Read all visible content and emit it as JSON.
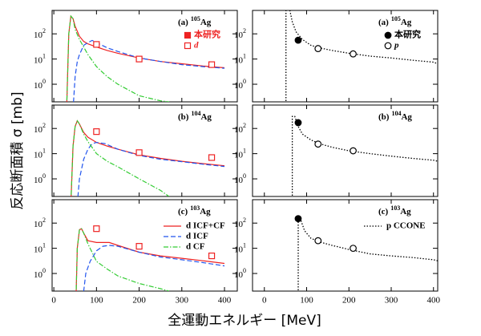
{
  "ylabel": "反応断面積 σ [mb]",
  "xlabel": "全運動エネルギー [MeV]",
  "chart_data": [
    {
      "type": "line",
      "panel": "(a)",
      "mass": "105",
      "element": "Ag",
      "log_y": true,
      "xlim": [
        -4,
        430
      ],
      "ylim": [
        0.2,
        850
      ],
      "xticks": [
        0,
        100,
        200,
        300,
        400
      ],
      "yticks": [
        {
          "value": 1,
          "label": "10",
          "exp": "0"
        },
        {
          "value": 10,
          "label": "10",
          "exp": "1"
        },
        {
          "value": 100,
          "label": "10",
          "exp": "2"
        }
      ],
      "xtick_labels": false,
      "legend_markers": [
        {
          "marker": "filled-square",
          "color": "#ee2222",
          "label": "本研究"
        },
        {
          "marker": "open-square",
          "color": "#ee2222",
          "label": "d"
        }
      ],
      "series": [
        {
          "style": "solid",
          "color": "#ee2222",
          "x": [
            30,
            35,
            40,
            45,
            50,
            60,
            70,
            80,
            100,
            125,
            150,
            200,
            250,
            300,
            350,
            400
          ],
          "values": [
            0.1,
            100,
            500,
            400,
            200,
            80,
            50,
            40,
            30,
            22,
            17,
            11,
            8,
            6.5,
            5.3,
            4.5
          ]
        },
        {
          "style": "dashed",
          "color": "#2255ee",
          "x": [
            45,
            50,
            55,
            60,
            70,
            80,
            90,
            100,
            125,
            150,
            200,
            250,
            300,
            350,
            400
          ],
          "values": [
            0.1,
            2,
            8,
            15,
            35,
            45,
            55,
            45,
            28,
            20,
            11,
            8,
            6,
            5,
            4.3
          ]
        },
        {
          "style": "dashdot",
          "color": "#33cc33",
          "x": [
            30,
            35,
            40,
            45,
            50,
            60,
            80,
            100,
            125,
            150,
            200,
            250,
            270
          ],
          "values": [
            0.1,
            100,
            500,
            400,
            150,
            60,
            15,
            5,
            2,
            1,
            0.35,
            0.22,
            0.2
          ]
        },
        {
          "style": "marker",
          "marker": "open-square",
          "color": "#ee2222",
          "x": [
            100,
            200,
            370
          ],
          "values": [
            38,
            10,
            6
          ]
        }
      ]
    },
    {
      "type": "line",
      "panel": "(a)",
      "mass": "105",
      "element": "Ag",
      "log_y": true,
      "xlim": [
        -28,
        410
      ],
      "ylim": [
        0.2,
        850
      ],
      "xticks": [
        0,
        100,
        200,
        300,
        400
      ],
      "yticks": [
        {
          "value": 1,
          "label": "10",
          "exp": "0"
        },
        {
          "value": 10,
          "label": "10",
          "exp": "1"
        },
        {
          "value": 100,
          "label": "10",
          "exp": "2"
        }
      ],
      "xtick_labels": false,
      "legend_markers": [
        {
          "marker": "filled-circle",
          "color": "#000000",
          "label": "本研究"
        },
        {
          "marker": "open-circle",
          "color": "#000000",
          "label": "p"
        }
      ],
      "series": [
        {
          "style": "dotted",
          "color": "#000000",
          "x": [
            51,
            51,
            60,
            66,
            75,
            90,
            110,
            130,
            160,
            200,
            250,
            300,
            350,
            400,
            410
          ],
          "values": [
            0.1,
            900,
            900,
            300,
            120,
            60,
            35,
            28,
            22,
            17,
            13,
            11,
            9,
            7.5,
            6.5
          ]
        },
        {
          "style": "marker",
          "marker": "filled-circle",
          "color": "#000000",
          "x": [
            80
          ],
          "values": [
            56
          ]
        },
        {
          "style": "marker",
          "marker": "open-circle",
          "color": "#000000",
          "x": [
            127,
            210
          ],
          "values": [
            26,
            16
          ]
        }
      ]
    },
    {
      "type": "line",
      "panel": "(b)",
      "mass": "104",
      "element": "Ag",
      "log_y": true,
      "xlim": [
        -4,
        430
      ],
      "ylim": [
        0.2,
        850
      ],
      "xticks": [
        0,
        100,
        200,
        300,
        400
      ],
      "yticks": [
        {
          "value": 1,
          "label": "10",
          "exp": "0"
        },
        {
          "value": 10,
          "label": "10",
          "exp": "1"
        },
        {
          "value": 100,
          "label": "10",
          "exp": "2"
        }
      ],
      "xtick_labels": false,
      "series": [
        {
          "style": "solid",
          "color": "#ee2222",
          "x": [
            40,
            45,
            50,
            55,
            60,
            70,
            80,
            100,
            125,
            150,
            200,
            250,
            300,
            350,
            400
          ],
          "values": [
            0.1,
            20,
            120,
            200,
            150,
            70,
            45,
            28,
            20,
            15,
            9,
            6.5,
            5,
            4,
            3.3
          ]
        },
        {
          "style": "dashed",
          "color": "#2255ee",
          "x": [
            55,
            60,
            70,
            80,
            90,
            100,
            120,
            150,
            200,
            250,
            300,
            350,
            400
          ],
          "values": [
            0.1,
            1,
            6,
            15,
            25,
            28,
            25,
            15,
            8.5,
            6,
            4.8,
            3.8,
            3.1
          ]
        },
        {
          "style": "dashdot",
          "color": "#33cc33",
          "x": [
            40,
            45,
            50,
            55,
            60,
            70,
            80,
            100,
            125,
            150,
            200,
            250,
            270
          ],
          "values": [
            0.1,
            20,
            120,
            200,
            150,
            60,
            30,
            10,
            5,
            3,
            1,
            0.35,
            0.2
          ]
        },
        {
          "style": "marker",
          "marker": "open-square",
          "color": "#ee2222",
          "x": [
            100,
            200,
            370
          ],
          "values": [
            75,
            11,
            7
          ]
        }
      ]
    },
    {
      "type": "line",
      "panel": "(b)",
      "mass": "104",
      "element": "Ag",
      "log_y": true,
      "xlim": [
        -28,
        410
      ],
      "ylim": [
        0.2,
        850
      ],
      "xticks": [
        0,
        100,
        200,
        300,
        400
      ],
      "yticks": [
        {
          "value": 1,
          "label": "10",
          "exp": "0"
        },
        {
          "value": 10,
          "label": "10",
          "exp": "1"
        },
        {
          "value": 100,
          "label": "10",
          "exp": "2"
        }
      ],
      "xtick_labels": false,
      "series": [
        {
          "style": "dotted",
          "color": "#000000",
          "x": [
            66,
            66,
            72,
            80,
            90,
            110,
            130,
            160,
            200,
            250,
            300,
            350,
            400,
            410
          ],
          "values": [
            0.1,
            300,
            300,
            120,
            60,
            35,
            25,
            18,
            13,
            10,
            8,
            6.5,
            5.5,
            5
          ]
        },
        {
          "style": "marker",
          "marker": "filled-circle",
          "color": "#000000",
          "x": [
            80
          ],
          "values": [
            170
          ]
        },
        {
          "style": "marker",
          "marker": "open-circle",
          "color": "#000000",
          "x": [
            127,
            210
          ],
          "values": [
            24,
            13
          ]
        }
      ]
    },
    {
      "type": "line",
      "panel": "(c)",
      "mass": "103",
      "element": "Ag",
      "log_y": true,
      "xlim": [
        -4,
        430
      ],
      "ylim": [
        0.2,
        850
      ],
      "xticks": [
        0,
        100,
        200,
        300,
        400
      ],
      "yticks": [
        {
          "value": 1,
          "label": "10",
          "exp": "0"
        },
        {
          "value": 10,
          "label": "10",
          "exp": "1"
        },
        {
          "value": 100,
          "label": "10",
          "exp": "2"
        }
      ],
      "xtick_labels": true,
      "legend": true,
      "series": [
        {
          "name": "d ICF+CF",
          "style": "solid",
          "color": "#ee2222",
          "x": [
            52,
            55,
            60,
            65,
            70,
            80,
            100,
            130,
            150,
            200,
            250,
            300,
            350,
            400
          ],
          "values": [
            0.1,
            10,
            55,
            60,
            40,
            20,
            17,
            17,
            13,
            7,
            5,
            4,
            3.2,
            2.5
          ]
        },
        {
          "name": "d ICF",
          "style": "dashed",
          "color": "#2255ee",
          "x": [
            68,
            75,
            85,
            100,
            115,
            130,
            150,
            200,
            250,
            300,
            350,
            400
          ],
          "values": [
            0.1,
            1,
            3,
            8,
            12,
            13,
            12,
            7,
            4.5,
            3.5,
            2.7,
            2
          ]
        },
        {
          "name": "d CF",
          "style": "dashdot",
          "color": "#33cc33",
          "x": [
            52,
            55,
            60,
            65,
            70,
            80,
            100,
            125,
            150,
            200,
            250,
            270
          ],
          "values": [
            0.1,
            10,
            55,
            60,
            40,
            15,
            3,
            1.5,
            0.8,
            0.4,
            0.25,
            0.2
          ]
        },
        {
          "style": "marker",
          "marker": "open-square",
          "color": "#ee2222",
          "x": [
            100,
            200,
            370
          ],
          "values": [
            60,
            12,
            5
          ]
        }
      ]
    },
    {
      "type": "line",
      "panel": "(c)",
      "mass": "103",
      "element": "Ag",
      "log_y": true,
      "xlim": [
        -28,
        410
      ],
      "ylim": [
        0.2,
        850
      ],
      "xticks": [
        0,
        100,
        200,
        300,
        400
      ],
      "yticks": [
        {
          "value": 1,
          "label": "10",
          "exp": "0"
        },
        {
          "value": 10,
          "label": "10",
          "exp": "1"
        },
        {
          "value": 100,
          "label": "10",
          "exp": "2"
        }
      ],
      "xtick_labels": true,
      "legend": true,
      "series": [
        {
          "name": "p CCONE",
          "style": "dotted",
          "color": "#000000",
          "x": [
            80,
            80,
            85,
            95,
            110,
            130,
            160,
            200,
            250,
            300,
            350,
            400,
            410
          ],
          "values": [
            0.1,
            150,
            150,
            50,
            25,
            18,
            13,
            9,
            6,
            5,
            4.3,
            3.5,
            3.2
          ]
        },
        {
          "style": "marker",
          "marker": "filled-circle",
          "color": "#000000",
          "x": [
            80
          ],
          "values": [
            150
          ]
        },
        {
          "style": "marker",
          "marker": "open-circle",
          "color": "#000000",
          "x": [
            127,
            210
          ],
          "values": [
            20,
            10
          ]
        }
      ]
    }
  ]
}
